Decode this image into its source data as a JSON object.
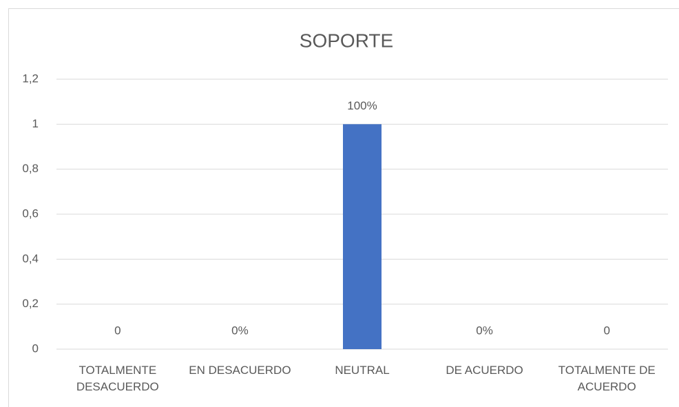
{
  "chart_data": {
    "type": "bar",
    "title": "SOPORTE",
    "categories": [
      "TOTALMENTE DESACUERDO",
      "EN DESACUERDO",
      "NEUTRAL",
      "DE ACUERDO",
      "TOTALMENTE DE ACUERDO"
    ],
    "values": [
      0,
      0,
      1,
      0,
      0
    ],
    "value_labels": [
      "0",
      "0%",
      "100%",
      "0%",
      "0"
    ],
    "color": "#4472c4",
    "ylim": [
      0,
      1.2
    ],
    "yticks": [
      0,
      {
        "value": 0.2,
        "label": "0,2"
      },
      {
        "value": 0.4,
        "label": "0,4"
      },
      {
        "value": 0.6,
        "label": "0,6"
      },
      {
        "value": 0.8,
        "label": "0,8"
      },
      1,
      {
        "value": 1.2,
        "label": "1,2"
      }
    ],
    "grid": true
  }
}
